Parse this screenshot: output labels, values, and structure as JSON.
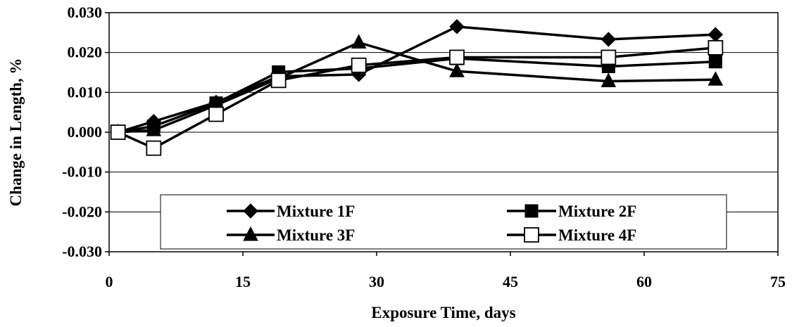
{
  "chart_data": {
    "type": "line",
    "title": "",
    "xlabel": "Exposure Time, days",
    "ylabel": "Change in Length, %",
    "xlim": [
      0,
      75
    ],
    "ylim": [
      -0.03,
      0.03
    ],
    "x_ticks": [
      0,
      15,
      30,
      45,
      60,
      75
    ],
    "x_tick_labels": [
      "0",
      "15",
      "30",
      "45",
      "60",
      "75"
    ],
    "y_ticks": [
      0.03,
      0.02,
      0.01,
      0.0,
      -0.01,
      -0.02,
      -0.03
    ],
    "y_tick_labels": [
      "0.030",
      "0.020",
      "0.010",
      "0.000",
      "-0.010",
      "-0.020",
      "-0.030"
    ],
    "grid": "horizontal",
    "legend_position": "lower-center",
    "series": [
      {
        "name": "Mixture 1F",
        "marker": "diamond",
        "x": [
          1,
          5,
          12,
          19,
          28,
          39,
          56,
          68
        ],
        "y": [
          0.0,
          0.0027,
          0.0075,
          0.014,
          0.0145,
          0.0265,
          0.0233,
          0.0245
        ]
      },
      {
        "name": "Mixture 2F",
        "marker": "square",
        "x": [
          1,
          5,
          12,
          19,
          28,
          39,
          56,
          68
        ],
        "y": [
          0.0,
          0.0015,
          0.0073,
          0.0151,
          0.016,
          0.0185,
          0.0165,
          0.0177
        ]
      },
      {
        "name": "Mixture 3F",
        "marker": "triangle",
        "x": [
          1,
          5,
          12,
          19,
          28,
          39,
          56,
          68
        ],
        "y": [
          0.0,
          0.0005,
          0.0068,
          0.0135,
          0.0225,
          0.0153,
          0.0128,
          0.0132
        ]
      },
      {
        "name": "Mixture 4F",
        "marker": "open-square",
        "x": [
          1,
          5,
          12,
          19,
          28,
          39,
          56,
          68
        ],
        "y": [
          0.0,
          -0.004,
          0.0045,
          0.013,
          0.0168,
          0.0188,
          0.0188,
          0.0212
        ]
      }
    ]
  }
}
